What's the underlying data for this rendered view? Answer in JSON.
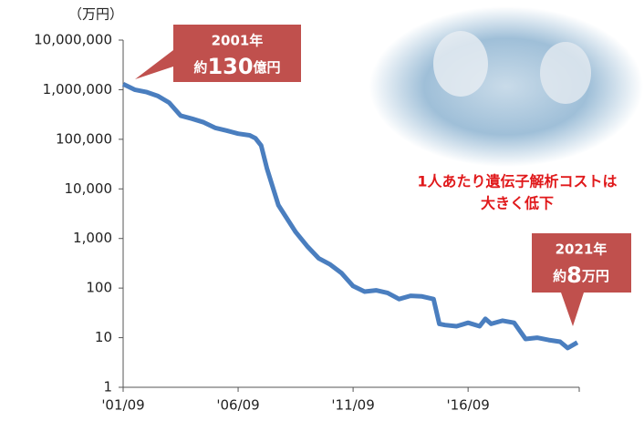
{
  "chart_data": {
    "type": "line",
    "unit_label": "（万円）",
    "x": [
      "2001-09",
      "2002-03",
      "2002-09",
      "2003-03",
      "2003-09",
      "2004-03",
      "2004-09",
      "2005-03",
      "2005-09",
      "2006-03",
      "2006-09",
      "2007-03",
      "2007-06",
      "2007-09",
      "2007-12",
      "2008-03",
      "2008-06",
      "2008-09",
      "2009-03",
      "2009-09",
      "2010-03",
      "2010-09",
      "2011-03",
      "2011-09",
      "2012-03",
      "2012-09",
      "2013-03",
      "2013-09",
      "2014-03",
      "2014-09",
      "2015-03",
      "2015-06",
      "2015-09",
      "2016-03",
      "2016-09",
      "2017-03",
      "2017-06",
      "2017-09",
      "2018-03",
      "2018-09",
      "2019-03",
      "2019-09",
      "2020-03",
      "2020-09",
      "2021-01",
      "2021-06"
    ],
    "series": [
      {
        "color": "#4a7ebf",
        "values": [
          1300000,
          1000000,
          900000,
          750000,
          550000,
          300000,
          260000,
          220000,
          170000,
          150000,
          130000,
          120000,
          105000,
          75000,
          26000,
          11000,
          4700,
          3100,
          1350,
          700,
          400,
          300,
          200,
          110,
          85,
          90,
          80,
          60,
          70,
          68,
          60,
          19,
          18,
          17,
          20,
          17,
          24,
          19,
          22,
          20,
          9.4,
          10,
          9,
          8.3,
          6.2,
          8
        ]
      }
    ],
    "xlim": [
      "2001-09",
      "2021-07"
    ],
    "xticks": [
      {
        "value": "2001-09",
        "label": "'01/09"
      },
      {
        "value": "2006-09",
        "label": "'06/09"
      },
      {
        "value": "2011-09",
        "label": "'11/09"
      },
      {
        "value": "2016-09",
        "label": "'16/09"
      }
    ],
    "ylim": [
      1,
      10000000
    ],
    "log_scale": true,
    "yticks": [
      1,
      10,
      100,
      {
        "value": 1000,
        "label": "1,000"
      },
      {
        "value": 10000,
        "label": "10,000"
      },
      {
        "value": 100000,
        "label": "100,000"
      },
      {
        "value": 1000000,
        "label": "1,000,000"
      },
      {
        "value": 10000000,
        "label": "10,000,000"
      }
    ],
    "annotations": [
      {
        "line1": "2001年",
        "prefix": "約",
        "amount": "130",
        "suffix": "億円"
      },
      {
        "line1": "2021年",
        "prefix": "約",
        "amount": "8",
        "suffix": "万円"
      }
    ],
    "caption": [
      "1人あたり遺伝子解析コストは",
      "大きく低下"
    ]
  }
}
